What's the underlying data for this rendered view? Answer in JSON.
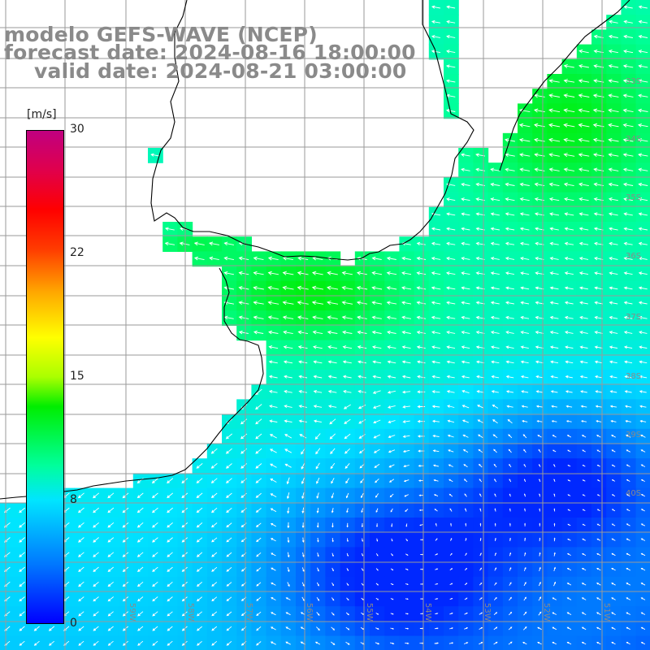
{
  "title": {
    "line1": "modelo GEFS-WAVE (NCEP)",
    "line2": "forecast date: 2024-08-16 18:00:00",
    "line3": "valid date: 2024-08-21 03:00:00"
  },
  "colorbar": {
    "unit": "[m/s]",
    "ticks": [
      "30",
      "22",
      "15",
      "8",
      "0"
    ],
    "tick_values": [
      30,
      22,
      15,
      8,
      0
    ],
    "range": [
      0,
      30
    ]
  },
  "lat_labels": [
    "33S",
    "34S",
    "35S",
    "36S",
    "37S",
    "38S",
    "39S",
    "40S"
  ],
  "lon_labels": [
    "59W",
    "58W",
    "57W",
    "56W",
    "55W",
    "54W",
    "53W",
    "52W",
    "51W"
  ],
  "colors": {
    "land": "#ffffff",
    "coast": "#000000",
    "grid": "#9a9a9a",
    "arrows": "#ffffff",
    "title_text": "#8a8a8a"
  },
  "field": {
    "variable": "wind speed",
    "units": "m/s"
  }
}
